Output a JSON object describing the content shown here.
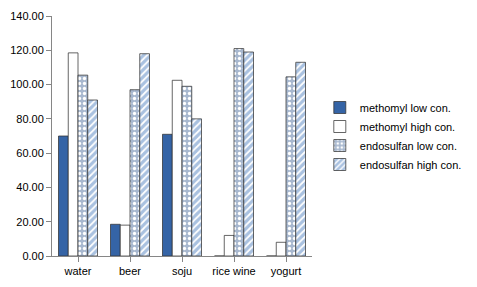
{
  "chart_data": {
    "type": "bar",
    "categories": [
      "water",
      "beer",
      "soju",
      "rice wine",
      "yogurt"
    ],
    "series": [
      {
        "name": "methomyl low con.",
        "color": "#3564a6",
        "values": [
          70,
          18.5,
          71,
          0,
          0
        ]
      },
      {
        "name": "methomyl high con.",
        "color": "#ffffff",
        "values": [
          118.5,
          18,
          102.5,
          12,
          8
        ]
      },
      {
        "name": "endosulfan low con.",
        "color": "#a8b8cf",
        "values": [
          105.5,
          97,
          99,
          121,
          104.5
        ]
      },
      {
        "name": "endosulfan high con.",
        "color": "#a9c1e0",
        "values": [
          91,
          118,
          80,
          119,
          113
        ]
      }
    ],
    "ylim": [
      0,
      140
    ],
    "yticks": [
      {
        "value": 0,
        "label": "0.00"
      },
      {
        "value": 20,
        "label": "20.00"
      },
      {
        "value": 40,
        "label": "40.00"
      },
      {
        "value": 60,
        "label": "60.00"
      },
      {
        "value": 80,
        "label": "80.00"
      },
      {
        "value": 100,
        "label": "100.00"
      },
      {
        "value": 120,
        "label": "120.00"
      },
      {
        "value": 140,
        "label": "140.00"
      }
    ],
    "grid": false,
    "legend": "right"
  }
}
